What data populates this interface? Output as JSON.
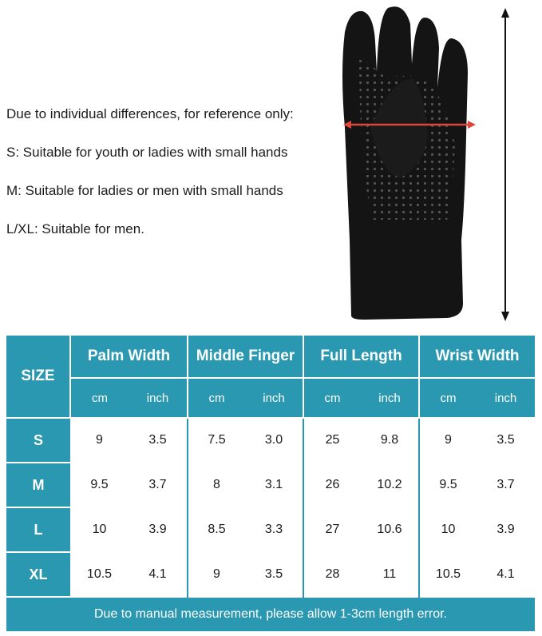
{
  "notes": [
    "Due to individual differences, for reference only:",
    "S: Suitable for youth or ladies with small hands",
    "M: Suitable for ladies or men with small hands",
    "L/XL: Suitable for men."
  ],
  "table": {
    "size_label": "SIZE",
    "groups": [
      "Palm Width",
      "Middle Finger",
      "Full Length",
      "Wrist Width"
    ],
    "units": [
      "cm",
      "inch",
      "cm",
      "inch",
      "cm",
      "inch",
      "cm",
      "inch"
    ],
    "rows": [
      {
        "size": "S",
        "values": [
          "9",
          "3.5",
          "7.5",
          "3.0",
          "25",
          "9.8",
          "9",
          "3.5"
        ]
      },
      {
        "size": "M",
        "values": [
          "9.5",
          "3.7",
          "8",
          "3.1",
          "26",
          "10.2",
          "9.5",
          "3.7"
        ]
      },
      {
        "size": "L",
        "values": [
          "10",
          "3.9",
          "8.5",
          "3.3",
          "27",
          "10.6",
          "10",
          "3.9"
        ]
      },
      {
        "size": "XL",
        "values": [
          "10.5",
          "4.1",
          "9",
          "3.5",
          "28",
          "11",
          "10.5",
          "4.1"
        ]
      }
    ],
    "footer": "Due to manual measurement, please allow 1-3cm length error."
  },
  "colors": {
    "header_bg": "#2a98b1",
    "glove": "#141414",
    "width_arrow": "#e0453a",
    "length_arrow": "#111111"
  },
  "icons": [
    "glove-image",
    "width-arrow-icon",
    "length-arrow-icon"
  ]
}
